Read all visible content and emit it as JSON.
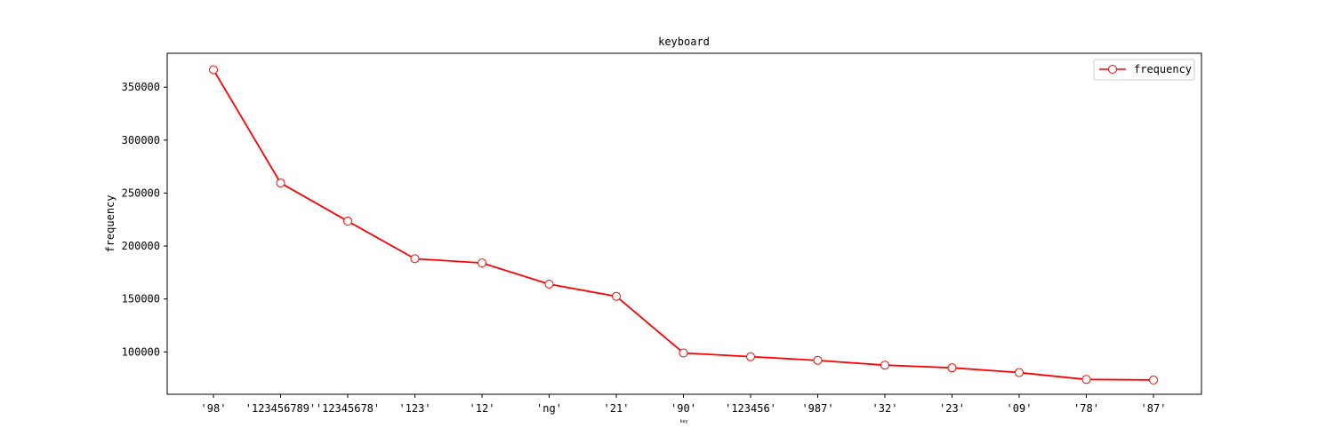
{
  "chart_data": {
    "type": "line",
    "title": "keyboard",
    "xlabel": "key",
    "ylabel": "frequency",
    "categories": [
      "'98'",
      "'123456789'",
      "'12345678'",
      "'123'",
      "'12'",
      "'ng'",
      "'21'",
      "'90'",
      "'123456'",
      "'987'",
      "'32'",
      "'23'",
      "'09'",
      "'78'",
      "'87'"
    ],
    "series": [
      {
        "name": "frequency",
        "values": [
          366500,
          259500,
          223500,
          188000,
          184000,
          164000,
          152500,
          99000,
          95500,
          92000,
          87500,
          85000,
          80500,
          74000,
          73500
        ]
      }
    ],
    "yticks": [
      100000,
      150000,
      200000,
      250000,
      300000,
      350000
    ],
    "ytick_labels": [
      "100000",
      "150000",
      "200000",
      "250000",
      "300000",
      "350000"
    ],
    "ylim": [
      60000,
      382000
    ],
    "grid": false,
    "legend_position": "top-right",
    "colors": {
      "line": "#ff0000",
      "marker_fill": "#ffffff",
      "axes": "#000000"
    }
  }
}
